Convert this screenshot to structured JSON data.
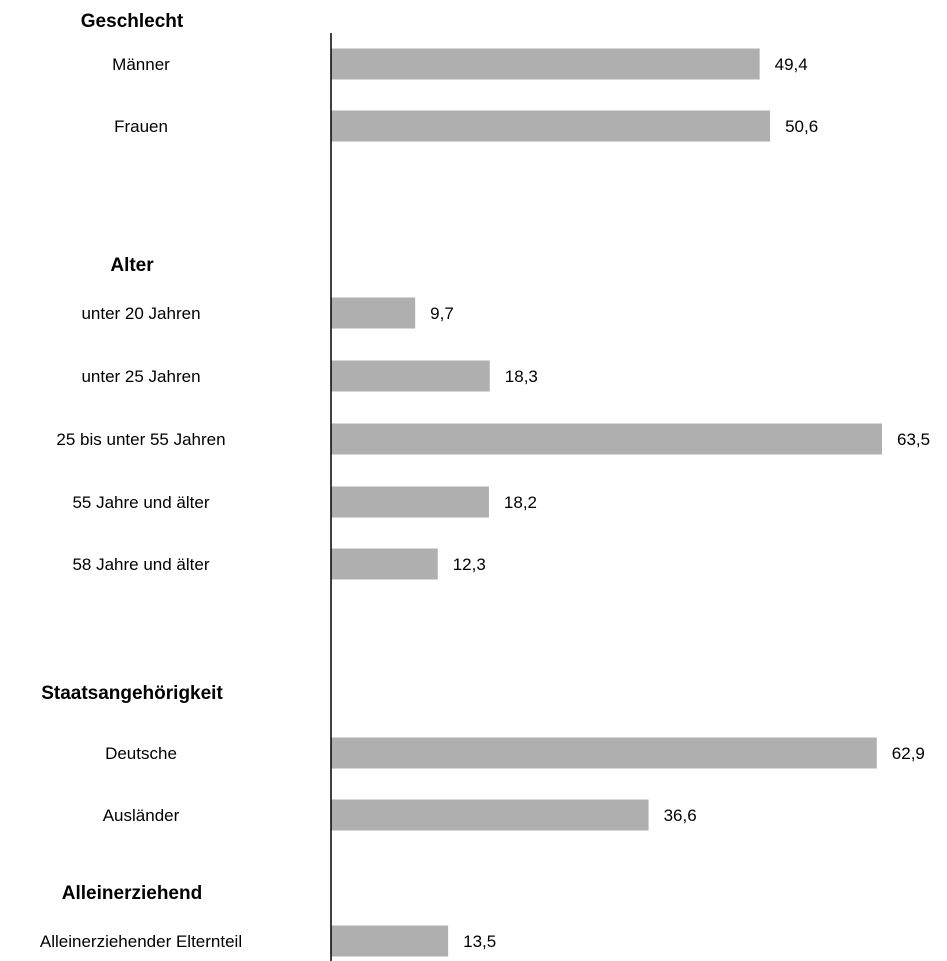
{
  "chart_data": {
    "type": "bar",
    "orientation": "horizontal",
    "bar_color": "#afafaf",
    "axis_color": "#000000",
    "value_range": [
      0,
      64
    ],
    "groups": [
      {
        "title": "Geschlecht",
        "categories": [
          "Männer",
          "Frauen"
        ],
        "values": [
          49.4,
          50.6
        ],
        "value_labels": [
          "49,4",
          "50,6"
        ]
      },
      {
        "title": "Alter",
        "categories": [
          "unter 20 Jahren",
          "unter 25 Jahren",
          "25 bis unter 55 Jahren",
          "55 Jahre und älter",
          "58 Jahre und älter"
        ],
        "values": [
          9.7,
          18.3,
          63.5,
          18.2,
          12.3
        ],
        "value_labels": [
          "9,7",
          "18,3",
          "63,5",
          "18,2",
          "12,3"
        ]
      },
      {
        "title": "Staatsangehörigkeit",
        "categories": [
          "Deutsche",
          "Ausländer"
        ],
        "values": [
          62.9,
          36.6
        ],
        "value_labels": [
          "62,9",
          "36,6"
        ]
      },
      {
        "title": "Alleinerziehend",
        "categories": [
          "Alleinerziehender Elternteil"
        ],
        "values": [
          13.5
        ],
        "value_labels": [
          "13,5"
        ]
      }
    ]
  }
}
